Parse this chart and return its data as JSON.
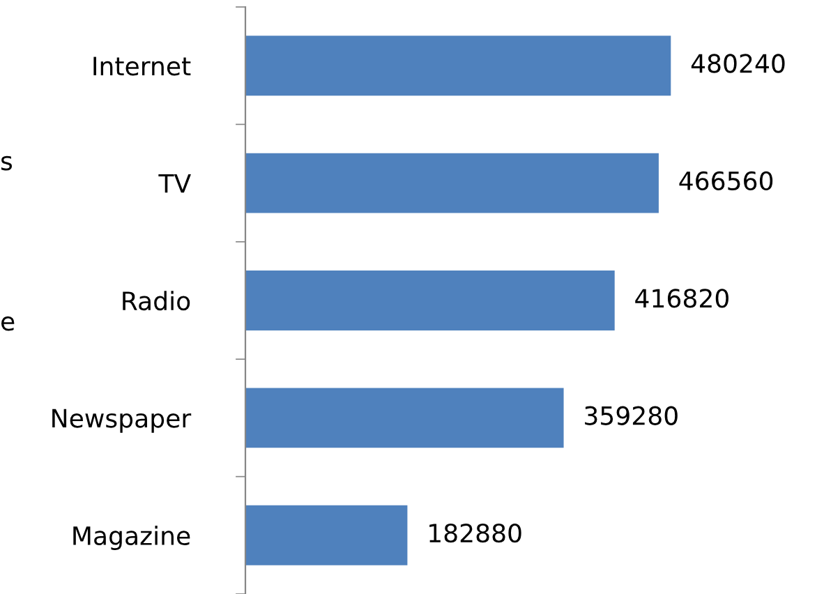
{
  "chart_data": {
    "type": "bar",
    "orientation": "horizontal",
    "categories": [
      "Internet",
      "TV",
      "Radio",
      "Newspaper",
      "Magazine"
    ],
    "values": [
      480240,
      466560,
      416820,
      359280,
      182880
    ],
    "color": "#4f81bd",
    "data_labels": true,
    "grid": false,
    "legend": false,
    "annotations": [
      "s",
      "e"
    ]
  }
}
